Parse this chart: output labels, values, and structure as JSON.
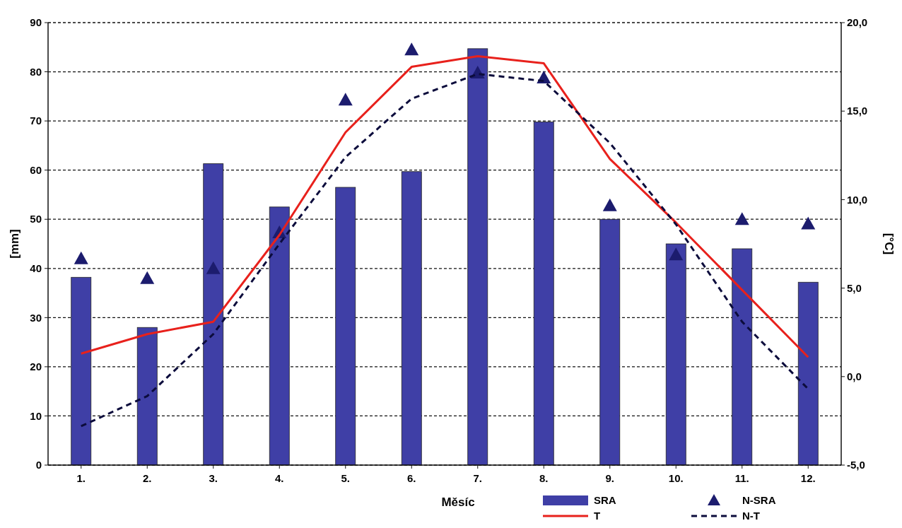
{
  "chart_data": {
    "type": "bar",
    "xlabel": "Měsíc",
    "ylabel": "[mm]",
    "y2label": "[°C]",
    "categories": [
      "1.",
      "2.",
      "3.",
      "4.",
      "5.",
      "6.",
      "7.",
      "8.",
      "9.",
      "10.",
      "11.",
      "12."
    ],
    "series": [
      {
        "name": "SRA",
        "color": "#3f3fa6",
        "values": [
          38.2,
          28,
          61.3,
          52.5,
          56.5,
          59.7,
          84.7,
          69.8,
          50,
          45,
          44,
          37.2
        ]
      },
      {
        "name": "N-SRA",
        "type": "scatter",
        "marker": "triangle",
        "color": "#1c1c6e",
        "values": [
          42,
          38,
          40,
          47.3,
          74.3,
          84.5,
          79.8,
          78.8,
          52.8,
          42.8,
          50,
          49.1
        ]
      },
      {
        "name": "T",
        "type": "line",
        "axis": "y2",
        "line_style": "solid",
        "color": "#e8211c",
        "values": [
          1.3,
          2.4,
          3.1,
          8.0,
          13.8,
          17.5,
          18.1,
          17.7,
          12.3,
          8.7,
          4.9,
          1.1
        ]
      },
      {
        "name": "N-T",
        "type": "line",
        "axis": "y2",
        "line_style": "dashed",
        "color": "#0c0c3c",
        "values": [
          -2.8,
          -1.1,
          2.4,
          7.5,
          12.4,
          15.7,
          17.1,
          16.7,
          13.2,
          8.6,
          3.1,
          -0.7
        ]
      }
    ],
    "ylim": [
      0,
      90
    ],
    "yticks": [
      0,
      10,
      20,
      30,
      40,
      50,
      60,
      70,
      80,
      90
    ],
    "y2lim": [
      -5,
      20
    ],
    "y2ticks": [
      {
        "value": -5,
        "label": "-5,0"
      },
      {
        "value": 0,
        "label": "0,0"
      },
      {
        "value": 5,
        "label": "5,0"
      },
      {
        "value": 10,
        "label": "10,0"
      },
      {
        "value": 15,
        "label": "15,0"
      },
      {
        "value": 20,
        "label": "20,0"
      }
    ],
    "grid": "y",
    "legend": "bottom right"
  }
}
